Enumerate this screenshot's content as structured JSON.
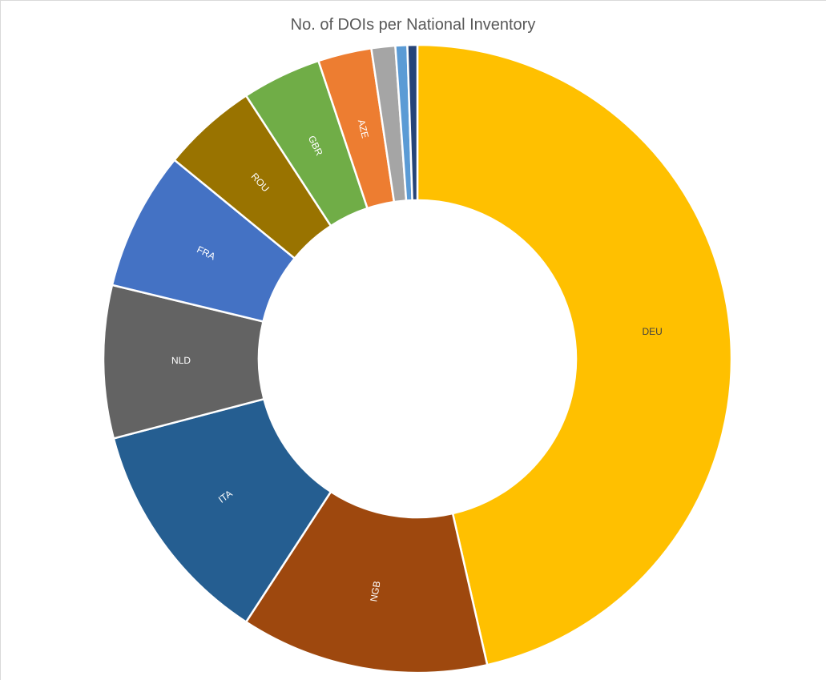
{
  "chart_data": {
    "type": "pie",
    "variant": "donut",
    "title": "No. of DOIs per National Inventory",
    "categories": [
      "DEU",
      "NGB",
      "ITA",
      "NLD",
      "FRA",
      "ROU",
      "GBR",
      "AZE",
      "",
      "",
      ""
    ],
    "values": [
      45.5,
      12.5,
      11.5,
      7.7,
      7.0,
      4.8,
      4.0,
      2.7,
      1.2,
      0.6,
      0.5
    ],
    "colors": [
      "#ffc000",
      "#9e480e",
      "#255e91",
      "#636363",
      "#4472c4",
      "#997300",
      "#70ad47",
      "#ed7d31",
      "#a5a5a5",
      "#5b9bd5",
      "#264478"
    ],
    "label_colors": [
      "#404040",
      "#ffffff",
      "#ffffff",
      "#ffffff",
      "#ffffff",
      "#ffffff",
      "#ffffff",
      "#ffffff",
      "#ffffff",
      "#ffffff",
      "#ffffff"
    ],
    "legend": "none",
    "data_labels": "category"
  }
}
